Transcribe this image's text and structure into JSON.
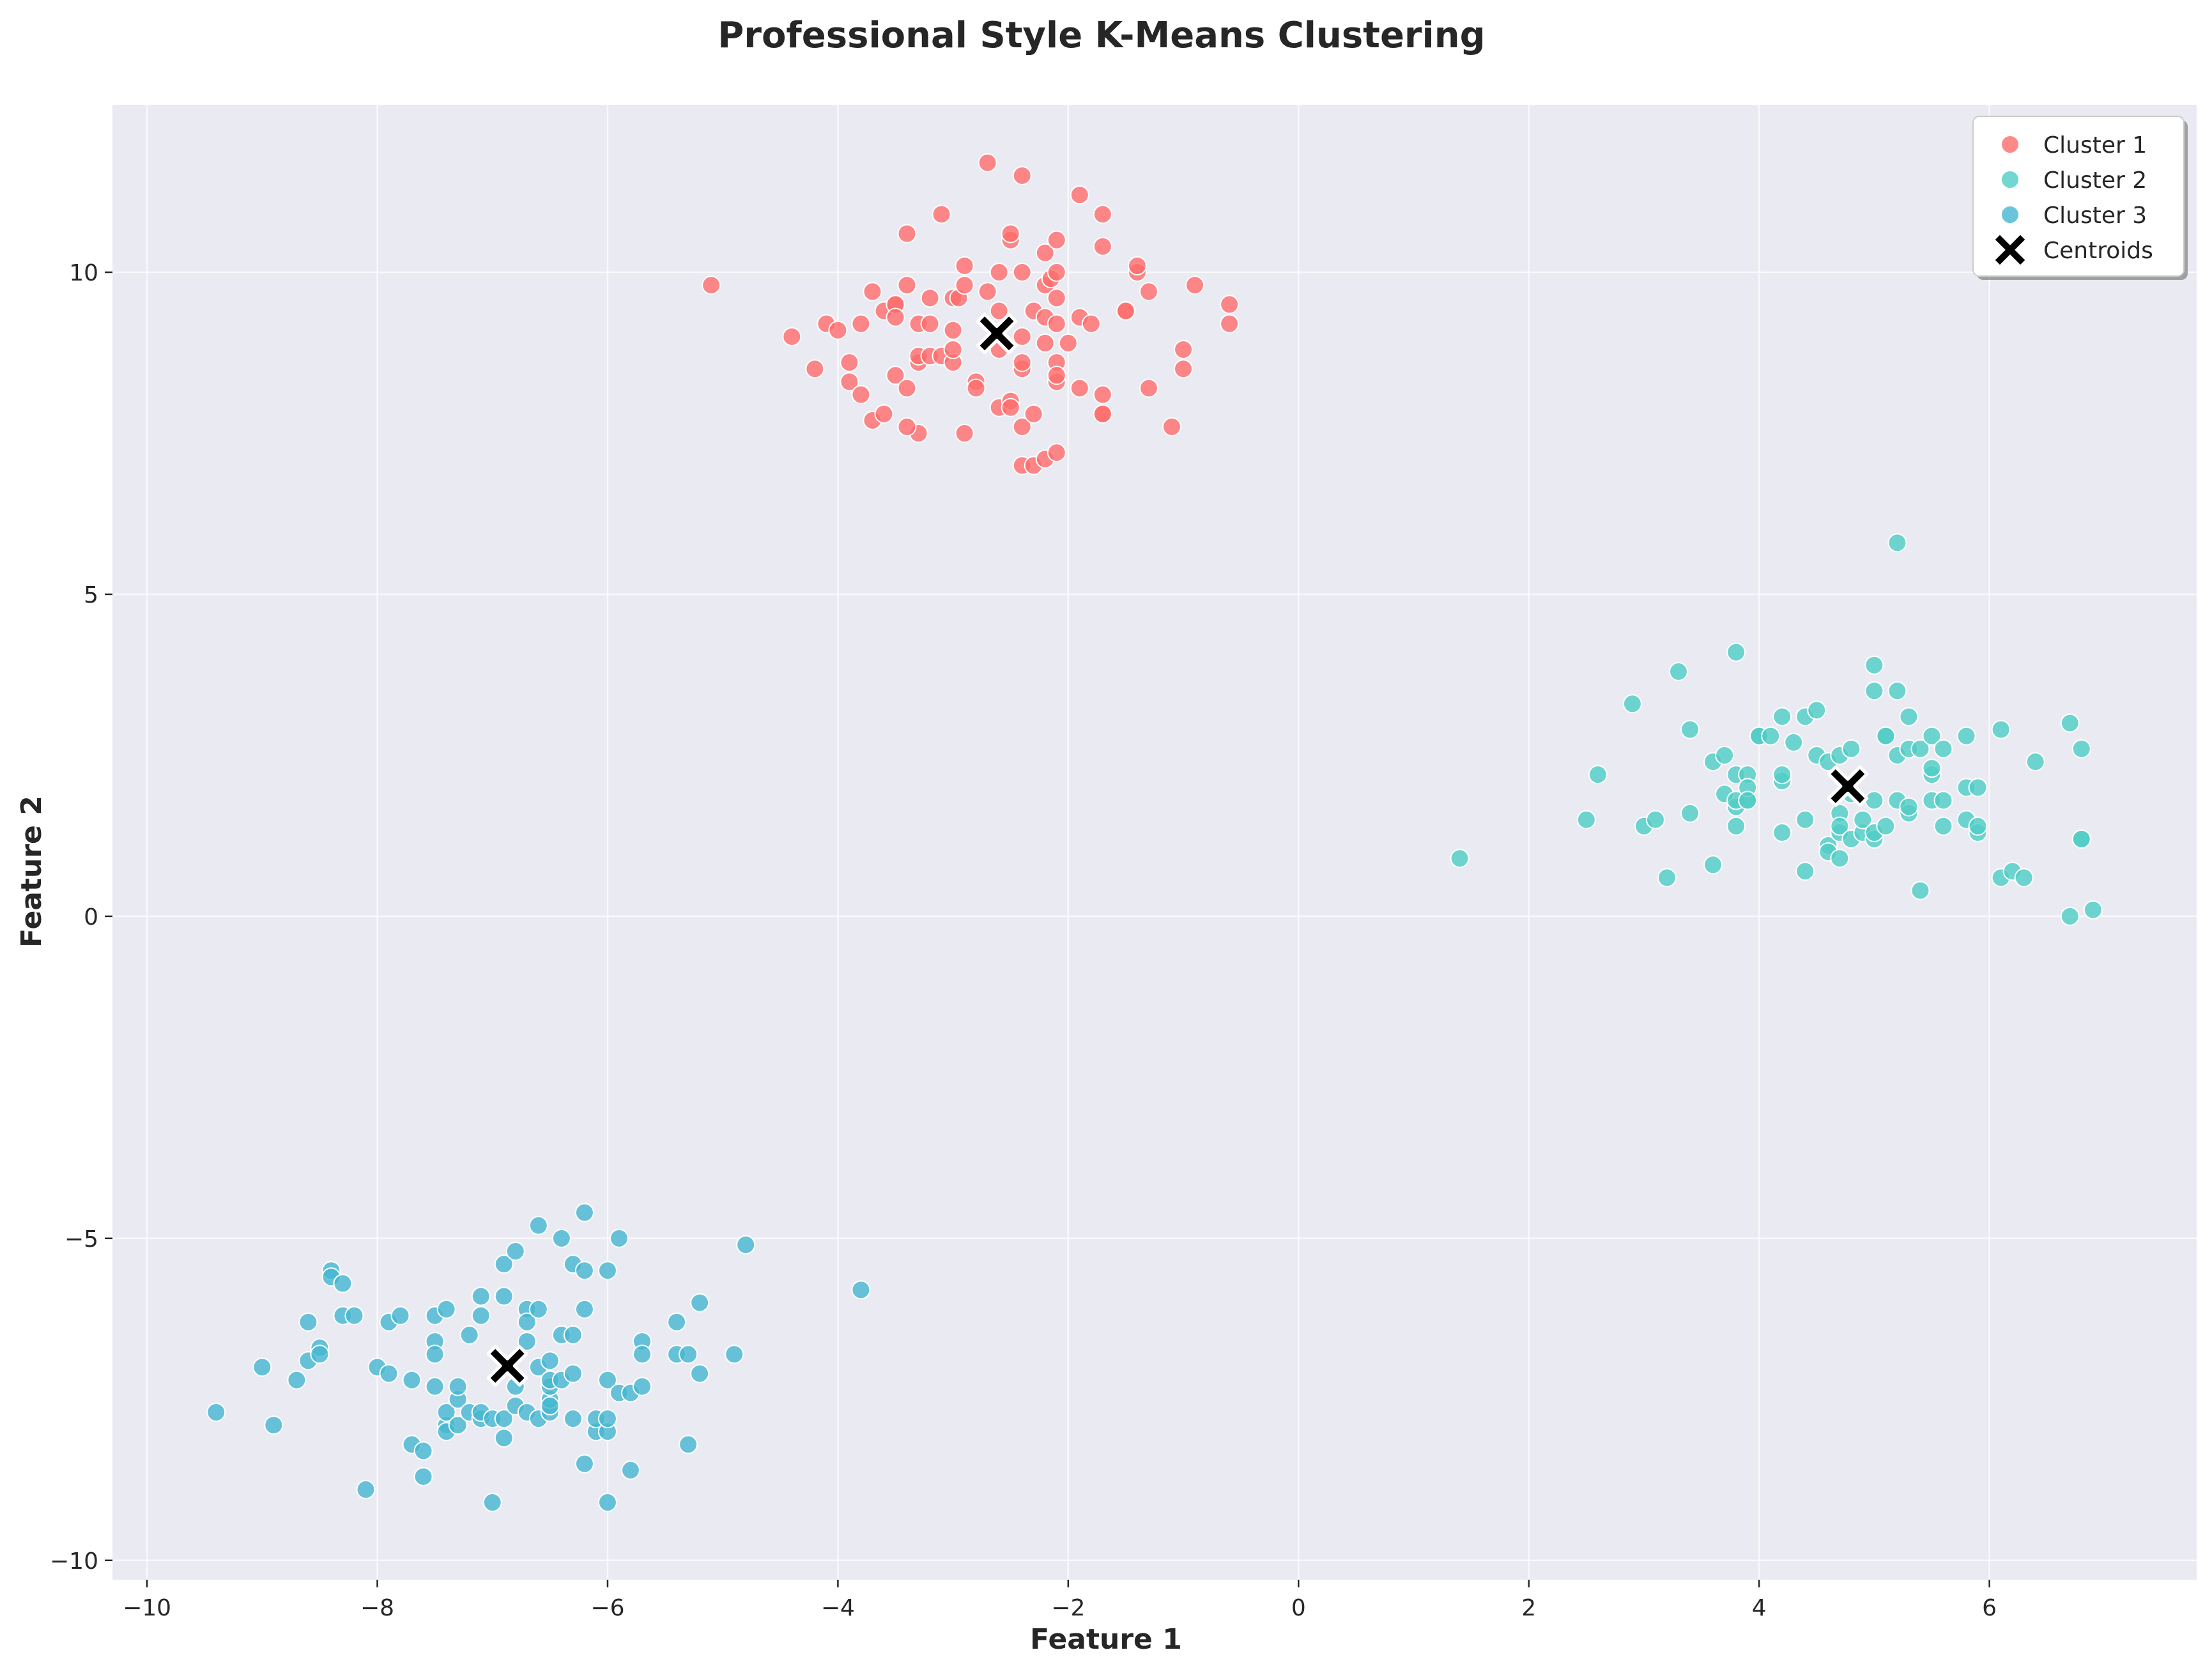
{
  "chart_data": {
    "type": "scatter",
    "title": "Professional Style K-Means Clustering",
    "xlabel": "Feature 1",
    "ylabel": "Feature 2",
    "xlim": [
      -10.3,
      7.8
    ],
    "ylim": [
      -10.3,
      12.6
    ],
    "xticks": [
      -10,
      -8,
      -6,
      -4,
      -2,
      0,
      2,
      4,
      6
    ],
    "yticks": [
      -10,
      -5,
      0,
      5,
      10
    ],
    "xtick_labels": [
      "−10",
      "−8",
      "−6",
      "−4",
      "−2",
      "0",
      "2",
      "4",
      "6"
    ],
    "ytick_labels": [
      "−10",
      "−5",
      "0",
      "5",
      "10"
    ],
    "grid": true,
    "legend_position": "top-right",
    "series": [
      {
        "name": "Cluster 1",
        "color": "#ff6b6b",
        "points": [
          [
            -5.1,
            9.8
          ],
          [
            -4.4,
            9.0
          ],
          [
            -4.2,
            8.5
          ],
          [
            -4.1,
            9.2
          ],
          [
            -4.0,
            9.1
          ],
          [
            -3.9,
            8.3
          ],
          [
            -3.9,
            8.6
          ],
          [
            -3.8,
            8.1
          ],
          [
            -3.8,
            9.2
          ],
          [
            -3.7,
            7.7
          ],
          [
            -3.7,
            9.7
          ],
          [
            -3.6,
            9.4
          ],
          [
            -3.6,
            7.8
          ],
          [
            -3.5,
            9.5
          ],
          [
            -3.5,
            9.5
          ],
          [
            -3.5,
            9.3
          ],
          [
            -3.5,
            8.4
          ],
          [
            -3.4,
            9.8
          ],
          [
            -3.4,
            10.6
          ],
          [
            -3.3,
            7.5
          ],
          [
            -3.3,
            9.2
          ],
          [
            -3.3,
            8.6
          ],
          [
            -3.3,
            8.7
          ],
          [
            -3.4,
            8.2
          ],
          [
            -3.4,
            7.6
          ],
          [
            -3.2,
            8.7
          ],
          [
            -3.2,
            9.6
          ],
          [
            -3.2,
            9.2
          ],
          [
            -3.1,
            10.9
          ],
          [
            -3.1,
            8.7
          ],
          [
            -3.0,
            9.6
          ],
          [
            -3.0,
            8.6
          ],
          [
            -3.0,
            9.1
          ],
          [
            -3.0,
            8.8
          ],
          [
            -2.95,
            9.6
          ],
          [
            -2.9,
            9.8
          ],
          [
            -2.9,
            10.1
          ],
          [
            -2.9,
            7.5
          ],
          [
            -2.8,
            8.3
          ],
          [
            -2.8,
            8.2
          ],
          [
            -2.7,
            9.7
          ],
          [
            -2.7,
            11.7
          ],
          [
            -2.6,
            8.8
          ],
          [
            -2.6,
            9.4
          ],
          [
            -2.6,
            10.0
          ],
          [
            -2.6,
            7.9
          ],
          [
            -2.5,
            10.5
          ],
          [
            -2.5,
            10.6
          ],
          [
            -2.5,
            8.0
          ],
          [
            -2.5,
            7.9
          ],
          [
            -2.4,
            11.5
          ],
          [
            -2.4,
            9.0
          ],
          [
            -2.4,
            8.5
          ],
          [
            -2.4,
            10.0
          ],
          [
            -2.4,
            8.6
          ],
          [
            -2.4,
            7.6
          ],
          [
            -2.4,
            7.0
          ],
          [
            -2.3,
            9.4
          ],
          [
            -2.3,
            7.8
          ],
          [
            -2.3,
            7.0
          ],
          [
            -2.2,
            9.3
          ],
          [
            -2.2,
            8.9
          ],
          [
            -2.2,
            10.3
          ],
          [
            -2.2,
            9.8
          ],
          [
            -2.2,
            7.1
          ],
          [
            -2.15,
            9.9
          ],
          [
            -2.1,
            8.3
          ],
          [
            -2.1,
            8.6
          ],
          [
            -2.1,
            10.0
          ],
          [
            -2.1,
            9.2
          ],
          [
            -2.1,
            9.6
          ],
          [
            -2.1,
            8.4
          ],
          [
            -2.1,
            7.2
          ],
          [
            -2.1,
            10.5
          ],
          [
            -2.0,
            8.9
          ],
          [
            -1.9,
            9.3
          ],
          [
            -1.9,
            11.2
          ],
          [
            -1.9,
            8.2
          ],
          [
            -1.8,
            9.2
          ],
          [
            -1.7,
            10.9
          ],
          [
            -1.7,
            10.4
          ],
          [
            -1.7,
            8.1
          ],
          [
            -1.7,
            7.8
          ],
          [
            -1.7,
            7.8
          ],
          [
            -1.5,
            9.4
          ],
          [
            -1.5,
            9.4
          ],
          [
            -1.4,
            10.0
          ],
          [
            -1.4,
            10.1
          ],
          [
            -1.3,
            9.7
          ],
          [
            -1.3,
            8.2
          ],
          [
            -1.1,
            7.6
          ],
          [
            -1.0,
            8.8
          ],
          [
            -1.0,
            8.5
          ],
          [
            -0.9,
            9.8
          ],
          [
            -0.6,
            9.5
          ],
          [
            -0.6,
            9.2
          ]
        ]
      },
      {
        "name": "Cluster 2",
        "color": "#4ecdc4",
        "points": [
          [
            1.4,
            0.9
          ],
          [
            2.5,
            1.5
          ],
          [
            2.6,
            2.2
          ],
          [
            2.9,
            3.3
          ],
          [
            3.0,
            1.4
          ],
          [
            3.1,
            1.5
          ],
          [
            3.2,
            0.6
          ],
          [
            3.3,
            3.8
          ],
          [
            3.4,
            2.9
          ],
          [
            3.4,
            1.6
          ],
          [
            3.6,
            0.8
          ],
          [
            3.6,
            2.4
          ],
          [
            3.7,
            2.5
          ],
          [
            3.7,
            1.9
          ],
          [
            3.8,
            2.2
          ],
          [
            3.8,
            1.7
          ],
          [
            3.8,
            1.4
          ],
          [
            3.8,
            1.8
          ],
          [
            3.8,
            4.1
          ],
          [
            3.9,
            2.2
          ],
          [
            3.9,
            1.8
          ],
          [
            3.9,
            2.0
          ],
          [
            3.9,
            1.8
          ],
          [
            4.0,
            2.8
          ],
          [
            4.0,
            2.8
          ],
          [
            4.1,
            2.8
          ],
          [
            4.2,
            3.1
          ],
          [
            4.2,
            2.1
          ],
          [
            4.2,
            2.2
          ],
          [
            4.2,
            1.3
          ],
          [
            4.3,
            2.7
          ],
          [
            4.4,
            1.5
          ],
          [
            4.4,
            3.1
          ],
          [
            4.4,
            0.7
          ],
          [
            4.5,
            3.2
          ],
          [
            4.5,
            2.5
          ],
          [
            4.6,
            2.4
          ],
          [
            4.6,
            1.1
          ],
          [
            4.6,
            1.0
          ],
          [
            4.7,
            2.5
          ],
          [
            4.7,
            0.9
          ],
          [
            4.7,
            1.6
          ],
          [
            4.7,
            1.3
          ],
          [
            4.7,
            1.4
          ],
          [
            4.8,
            2.6
          ],
          [
            4.8,
            1.2
          ],
          [
            4.8,
            1.9
          ],
          [
            4.9,
            1.3
          ],
          [
            4.9,
            1.5
          ],
          [
            5.0,
            1.8
          ],
          [
            5.0,
            3.5
          ],
          [
            5.0,
            3.9
          ],
          [
            5.0,
            1.2
          ],
          [
            5.0,
            1.3
          ],
          [
            5.1,
            1.4
          ],
          [
            5.1,
            2.8
          ],
          [
            5.1,
            2.8
          ],
          [
            5.2,
            3.5
          ],
          [
            5.2,
            2.5
          ],
          [
            5.2,
            1.8
          ],
          [
            5.2,
            5.8
          ],
          [
            5.3,
            3.1
          ],
          [
            5.3,
            2.6
          ],
          [
            5.3,
            1.6
          ],
          [
            5.3,
            1.7
          ],
          [
            5.4,
            0.4
          ],
          [
            5.4,
            2.6
          ],
          [
            5.5,
            2.8
          ],
          [
            5.5,
            1.8
          ],
          [
            5.5,
            2.2
          ],
          [
            5.5,
            2.3
          ],
          [
            5.6,
            2.6
          ],
          [
            5.6,
            1.4
          ],
          [
            5.6,
            1.8
          ],
          [
            5.8,
            2.0
          ],
          [
            5.8,
            1.5
          ],
          [
            5.8,
            2.8
          ],
          [
            5.9,
            1.3
          ],
          [
            5.9,
            1.4
          ],
          [
            5.9,
            2.0
          ],
          [
            6.1,
            0.6
          ],
          [
            6.1,
            2.9
          ],
          [
            6.2,
            0.7
          ],
          [
            6.3,
            0.6
          ],
          [
            6.4,
            2.4
          ],
          [
            6.7,
            0.0
          ],
          [
            6.7,
            3.0
          ],
          [
            6.8,
            2.6
          ],
          [
            6.8,
            1.2
          ],
          [
            6.8,
            1.2
          ],
          [
            6.9,
            0.1
          ]
        ]
      },
      {
        "name": "Cluster 3",
        "color": "#45b7d1",
        "points": [
          [
            -9.4,
            -7.7
          ],
          [
            -9.0,
            -7.0
          ],
          [
            -8.9,
            -7.9
          ],
          [
            -8.7,
            -7.2
          ],
          [
            -8.6,
            -6.9
          ],
          [
            -8.6,
            -6.3
          ],
          [
            -8.5,
            -6.7
          ],
          [
            -8.5,
            -6.8
          ],
          [
            -8.4,
            -5.5
          ],
          [
            -8.4,
            -5.6
          ],
          [
            -8.3,
            -5.7
          ],
          [
            -8.3,
            -6.2
          ],
          [
            -8.2,
            -6.2
          ],
          [
            -8.1,
            -8.9
          ],
          [
            -8.0,
            -7.0
          ],
          [
            -7.9,
            -7.1
          ],
          [
            -7.9,
            -6.3
          ],
          [
            -7.8,
            -6.2
          ],
          [
            -7.7,
            -8.2
          ],
          [
            -7.7,
            -7.2
          ],
          [
            -7.6,
            -8.7
          ],
          [
            -7.6,
            -8.3
          ],
          [
            -7.5,
            -6.6
          ],
          [
            -7.5,
            -6.2
          ],
          [
            -7.5,
            -6.8
          ],
          [
            -7.5,
            -7.3
          ],
          [
            -7.4,
            -7.9
          ],
          [
            -7.4,
            -6.1
          ],
          [
            -7.4,
            -8.0
          ],
          [
            -7.4,
            -7.7
          ],
          [
            -7.3,
            -7.5
          ],
          [
            -7.3,
            -7.3
          ],
          [
            -7.3,
            -7.9
          ],
          [
            -7.2,
            -7.7
          ],
          [
            -7.2,
            -6.5
          ],
          [
            -7.1,
            -5.9
          ],
          [
            -7.1,
            -6.2
          ],
          [
            -7.1,
            -7.8
          ],
          [
            -7.1,
            -7.7
          ],
          [
            -7.0,
            -9.1
          ],
          [
            -7.0,
            -7.8
          ],
          [
            -6.9,
            -7.8
          ],
          [
            -6.9,
            -8.1
          ],
          [
            -6.9,
            -5.9
          ],
          [
            -6.9,
            -5.4
          ],
          [
            -6.8,
            -5.2
          ],
          [
            -6.8,
            -7.6
          ],
          [
            -6.8,
            -7.3
          ],
          [
            -6.7,
            -7.7
          ],
          [
            -6.7,
            -6.1
          ],
          [
            -6.7,
            -6.3
          ],
          [
            -6.7,
            -6.6
          ],
          [
            -6.6,
            -6.1
          ],
          [
            -6.6,
            -7.0
          ],
          [
            -6.6,
            -7.8
          ],
          [
            -6.6,
            -4.8
          ],
          [
            -6.5,
            -7.7
          ],
          [
            -6.5,
            -7.5
          ],
          [
            -6.5,
            -7.6
          ],
          [
            -6.5,
            -7.3
          ],
          [
            -6.5,
            -7.2
          ],
          [
            -6.5,
            -6.9
          ],
          [
            -6.4,
            -5.0
          ],
          [
            -6.4,
            -6.5
          ],
          [
            -6.4,
            -7.2
          ],
          [
            -6.3,
            -5.4
          ],
          [
            -6.3,
            -7.8
          ],
          [
            -6.3,
            -6.5
          ],
          [
            -6.3,
            -7.1
          ],
          [
            -6.2,
            -8.5
          ],
          [
            -6.2,
            -4.6
          ],
          [
            -6.2,
            -5.5
          ],
          [
            -6.2,
            -6.1
          ],
          [
            -6.1,
            -8.0
          ],
          [
            -6.1,
            -7.8
          ],
          [
            -6.0,
            -8.0
          ],
          [
            -6.0,
            -7.8
          ],
          [
            -6.0,
            -9.1
          ],
          [
            -6.0,
            -7.2
          ],
          [
            -6.0,
            -5.5
          ],
          [
            -5.9,
            -5.0
          ],
          [
            -5.9,
            -7.4
          ],
          [
            -5.8,
            -8.6
          ],
          [
            -5.8,
            -7.4
          ],
          [
            -5.7,
            -6.6
          ],
          [
            -5.7,
            -6.8
          ],
          [
            -5.7,
            -7.3
          ],
          [
            -5.4,
            -6.8
          ],
          [
            -5.4,
            -6.3
          ],
          [
            -5.3,
            -6.8
          ],
          [
            -5.3,
            -8.2
          ],
          [
            -5.2,
            -7.1
          ],
          [
            -5.2,
            -6.0
          ],
          [
            -4.9,
            -6.8
          ],
          [
            -4.8,
            -5.1
          ],
          [
            -3.8,
            -5.8
          ]
        ]
      },
      {
        "name": "Centroids",
        "color": "#000000",
        "marker": "x",
        "points": [
          [
            -2.62,
            9.05
          ],
          [
            4.77,
            2.02
          ],
          [
            -6.87,
            -6.98
          ]
        ]
      }
    ]
  }
}
